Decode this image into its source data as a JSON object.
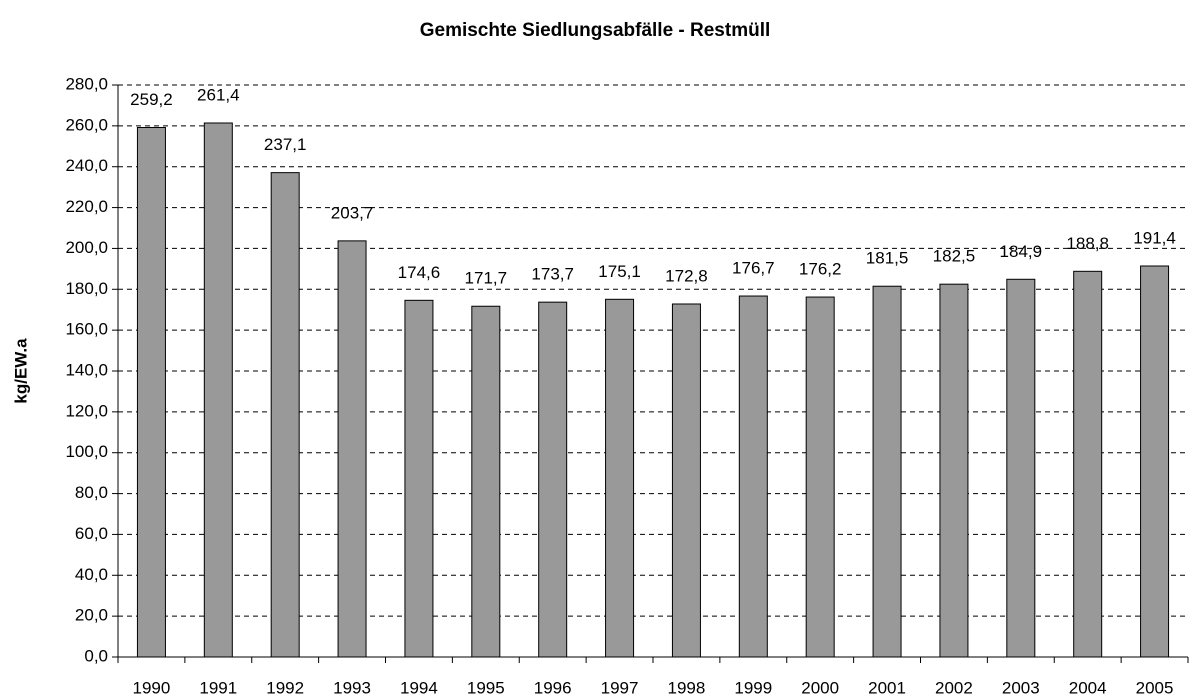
{
  "chart_data": {
    "type": "bar",
    "title": "Gemischte Siedlungsabfälle - Restmüll",
    "y_label": "kg/EW.a",
    "categories": [
      "1990",
      "1991",
      "1992",
      "1993",
      "1994",
      "1995",
      "1996",
      "1997",
      "1998",
      "1999",
      "2000",
      "2001",
      "2002",
      "2003",
      "2004",
      "2005"
    ],
    "values": [
      259.2,
      261.4,
      237.1,
      203.7,
      174.6,
      171.7,
      173.7,
      175.1,
      172.8,
      176.7,
      176.2,
      181.5,
      182.5,
      184.9,
      188.8,
      191.4
    ],
    "value_labels": [
      "259,2",
      "261,4",
      "237,1",
      "203,7",
      "174,6",
      "171,7",
      "173,7",
      "175,1",
      "172,8",
      "176,7",
      "176,2",
      "181,5",
      "182,5",
      "184,9",
      "188,8",
      "191,4"
    ],
    "color": "#999999",
    "ylim": [
      0,
      280
    ],
    "yticks": [
      {
        "value": 0,
        "label": "0,0"
      },
      {
        "value": 20,
        "label": "20,0"
      },
      {
        "value": 40,
        "label": "40,0"
      },
      {
        "value": 60,
        "label": "60,0"
      },
      {
        "value": 80,
        "label": "80,0"
      },
      {
        "value": 100,
        "label": "100,0"
      },
      {
        "value": 120,
        "label": "120,0"
      },
      {
        "value": 140,
        "label": "140,0"
      },
      {
        "value": 160,
        "label": "160,0"
      },
      {
        "value": 180,
        "label": "180,0"
      },
      {
        "value": 200,
        "label": "200,0"
      },
      {
        "value": 220,
        "label": "220,0"
      },
      {
        "value": 240,
        "label": "240,0"
      },
      {
        "value": 260,
        "label": "260,0"
      },
      {
        "value": 280,
        "label": "280,0"
      }
    ],
    "grid": true
  }
}
